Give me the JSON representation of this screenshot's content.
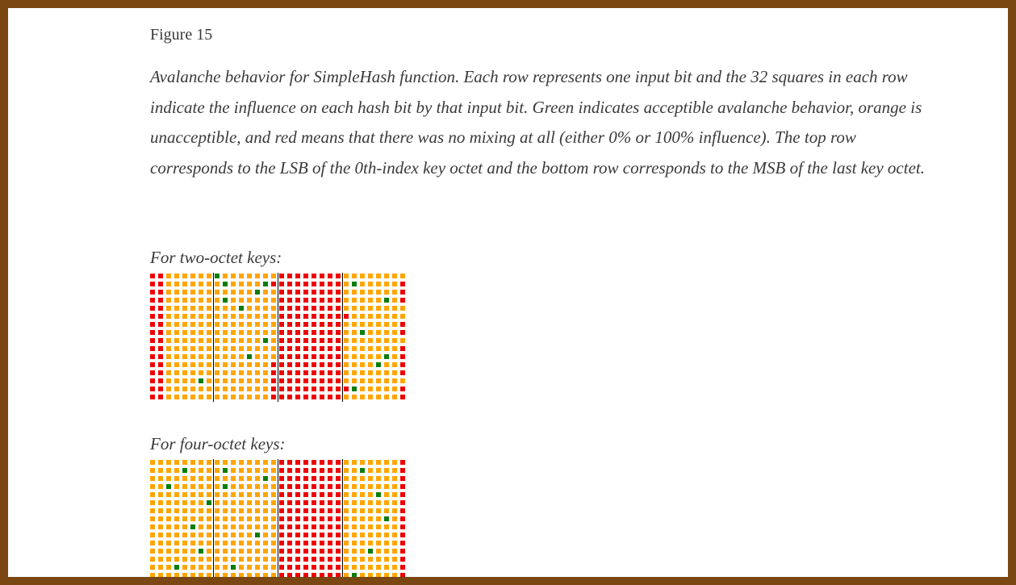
{
  "figure": {
    "label": "Figure 15",
    "caption": "Avalanche behavior for SimpleHash function. Each row represents one input bit and the 32 squares in each row indicate the influence on each hash bit by that input bit. Green indicates acceptible avalanche behavior, orange is unacceptible, and red means that there was no mixing at all (either 0% or 100% influence). The top row corresponds to the LSB of the 0th-index key octet and the bottom row corresponds to the MSB of the last key octet."
  },
  "colors": {
    "green": "#0a7d0a",
    "orange": "#ffa500",
    "red": "#ee0000",
    "border": "#7a4712"
  },
  "sections": [
    {
      "label": "For two-octet keys:",
      "rows": [
        "RROOOOOOGOOOOOOORRRRRRRROOOOOOOO",
        "RROOOOOOOGOOOOGRRRRRRRRROGOOOOOR",
        "RROOOOOOOOOOOGOORRRRRRRROOOOOOOR",
        "RROOOOOOOGOOOOOORRRRRRRROOOOOGOR",
        "RROOOOOOOOOGOOOORRRRRRRROOOOOOOO",
        "RROOOOOOOOOOOOOORRRRRRRRROOOOOOO",
        "RROOOOOOOOOOOOOORRRRRRRROOOOOOOR",
        "RROOOOOOOOOOOOOORRRRRRRROOGOOOOR",
        "RROOOOOOOOOOOOGORRRRRRRROOOOOOOO",
        "RROOOOOOOOOOOOOORRRRRRRROOOOOOOR",
        "RROOOOOOOOOOGOOORRRRRRRROOOOOGOR",
        "RROOOOOOOOOOOOORRRRRRRRROOOOGOOR",
        "RROOOOOOOOOOOOORRRRRRRRROOOOOOOR",
        "RROOOOGOOOOOOOORRRRRRRRROOOOOOOO",
        "RROOOOOOOOOOOOORRRRRRRRRRGOOOOOR",
        "RROOOOOOOOOOOOORRRRRRRRROOOOOOOR"
      ]
    },
    {
      "label": "For four-octet keys:",
      "rows": [
        "OOOOOOOOOOOOOOOORRRRRRRROOOOOOOR",
        "OOOOGOOOOGOOOOOORRRRRRRROOGOOOOR",
        "OOOOOOOOOOOOOOGORRRRRRRROOOOOOOR",
        "OOGOOOOOOGOOOOOORRRRRRRROOOOOOOR",
        "OOOOOOOOOOOOOOOORRRRRRRROOOOGOOR",
        "OOOOOOOGOOOOOOOORRRRRRRROOOOOOOR",
        "OOOOOOOOOOOOOOOORRRRRRRROOOOOOOR",
        "OOOOOOOOOOOOOOOORRRRRRRROOOOOGOR",
        "OOOOOGOOOOOOOOOORRRRRRRROOOOOOOR",
        "OOOOOOOOOOOOOGOORRRRRRRROOOOOOOR",
        "OOOOOOOOOOOOOOOORRRRRRRROOOOOOOR",
        "OOOOOOGOOOOOOOOORRRRRRRROOOGOOOR",
        "OOOOOOOOOOOOOOOORRRRRRRROOOOOOOR",
        "OOOGOOOOOOGOOOOORRRRRRRROOOOOOOR",
        "OOOOOOOOOOOOOOOORRRRRRRROGOOOOOR"
      ]
    }
  ]
}
